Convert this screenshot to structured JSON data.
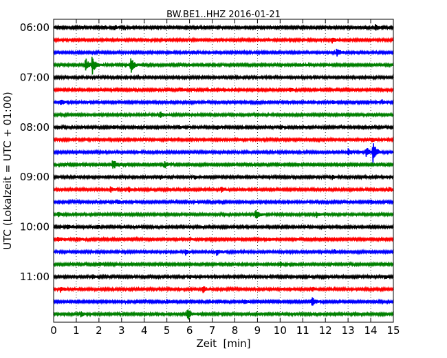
{
  "chart_data": {
    "type": "line",
    "title": "BW.BE1..HHZ 2016-01-21",
    "xlabel": "Zeit  [min]",
    "ylabel": "UTC (Lokalzeit = UTC + 01:00)",
    "xlim": [
      0,
      15
    ],
    "x_ticks": [
      "0",
      "1",
      "2",
      "3",
      "4",
      "5",
      "6",
      "7",
      "8",
      "9",
      "10",
      "11",
      "12",
      "13",
      "14",
      "15"
    ],
    "y_ticks": [
      "06:00",
      "07:00",
      "08:00",
      "09:00",
      "10:00",
      "11:00"
    ],
    "grid": "vertical dotted",
    "trace_minutes": 15,
    "colors": [
      "#000000",
      "#ff0000",
      "#0000ff",
      "#008000"
    ],
    "series": [
      {
        "start": "06:00",
        "color": "#000000",
        "events": [
          {
            "t": 2.7,
            "a": 0.3
          },
          {
            "t": 14.2,
            "a": 0.6
          }
        ]
      },
      {
        "start": "06:15",
        "color": "#ff0000",
        "events": [
          {
            "t": 12.3,
            "a": 0.4
          }
        ]
      },
      {
        "start": "06:30",
        "color": "#0000ff",
        "events": [
          {
            "t": 6.1,
            "a": 0.3
          },
          {
            "t": 12.5,
            "a": 0.7
          }
        ]
      },
      {
        "start": "06:45",
        "color": "#008000",
        "events": [
          {
            "t": 1.4,
            "a": 1.2
          },
          {
            "t": 1.7,
            "a": 1.6
          },
          {
            "t": 3.4,
            "a": 1.4
          },
          {
            "t": 10.8,
            "a": 0.3
          }
        ]
      },
      {
        "start": "07:00",
        "color": "#000000",
        "events": []
      },
      {
        "start": "07:15",
        "color": "#ff0000",
        "events": [
          {
            "t": 5.6,
            "a": 0.3
          },
          {
            "t": 10.4,
            "a": 0.3
          }
        ]
      },
      {
        "start": "07:30",
        "color": "#0000ff",
        "events": [
          {
            "t": 0.3,
            "a": 0.5
          },
          {
            "t": 12.3,
            "a": 0.3
          },
          {
            "t": 14.5,
            "a": 0.3
          }
        ]
      },
      {
        "start": "07:45",
        "color": "#008000",
        "events": [
          {
            "t": 4.7,
            "a": 0.5
          }
        ]
      },
      {
        "start": "08:00",
        "color": "#000000",
        "events": [
          {
            "t": 2.6,
            "a": 0.3
          },
          {
            "t": 5.5,
            "a": 0.3
          },
          {
            "t": 7.2,
            "a": 0.4
          },
          {
            "t": 10.0,
            "a": 0.3
          }
        ]
      },
      {
        "start": "08:15",
        "color": "#ff0000",
        "events": [
          {
            "t": 14.0,
            "a": 0.4
          }
        ]
      },
      {
        "start": "08:30",
        "color": "#0000ff",
        "events": [
          {
            "t": 13.0,
            "a": 0.6
          },
          {
            "t": 13.8,
            "a": 0.8
          },
          {
            "t": 14.1,
            "a": 1.8
          }
        ]
      },
      {
        "start": "08:45",
        "color": "#008000",
        "events": [
          {
            "t": 2.6,
            "a": 1.1
          },
          {
            "t": 4.9,
            "a": 0.5
          }
        ]
      },
      {
        "start": "09:00",
        "color": "#000000",
        "events": [
          {
            "t": 4.7,
            "a": 0.4
          },
          {
            "t": 6.2,
            "a": 0.3
          },
          {
            "t": 12.3,
            "a": 0.3
          }
        ]
      },
      {
        "start": "09:15",
        "color": "#ff0000",
        "events": [
          {
            "t": 2.5,
            "a": 0.4
          },
          {
            "t": 3.3,
            "a": 0.4
          },
          {
            "t": 7.4,
            "a": 0.4
          },
          {
            "t": 14.8,
            "a": 0.4
          }
        ]
      },
      {
        "start": "09:30",
        "color": "#0000ff",
        "events": [
          {
            "t": 2.8,
            "a": 0.4
          },
          {
            "t": 14.0,
            "a": 0.3
          }
        ]
      },
      {
        "start": "09:45",
        "color": "#008000",
        "events": [
          {
            "t": 0.2,
            "a": 0.4
          },
          {
            "t": 8.9,
            "a": 1.0
          },
          {
            "t": 11.6,
            "a": 0.5
          }
        ]
      },
      {
        "start": "10:00",
        "color": "#000000",
        "events": [
          {
            "t": 0.6,
            "a": 0.4
          },
          {
            "t": 1.9,
            "a": 0.3
          }
        ]
      },
      {
        "start": "10:15",
        "color": "#ff0000",
        "events": [
          {
            "t": 0.2,
            "a": 0.4
          },
          {
            "t": 1.0,
            "a": 0.5
          },
          {
            "t": 9.5,
            "a": 0.3
          }
        ]
      },
      {
        "start": "10:30",
        "color": "#0000ff",
        "events": [
          {
            "t": 5.8,
            "a": 0.5
          },
          {
            "t": 7.2,
            "a": 0.5
          },
          {
            "t": 12.4,
            "a": 0.3
          }
        ]
      },
      {
        "start": "10:45",
        "color": "#008000",
        "events": [
          {
            "t": 2.0,
            "a": 0.3
          },
          {
            "t": 10.0,
            "a": 0.4
          }
        ]
      },
      {
        "start": "11:00",
        "color": "#000000",
        "events": [
          {
            "t": 1.7,
            "a": 0.3
          },
          {
            "t": 6.0,
            "a": 0.3
          },
          {
            "t": 14.6,
            "a": 0.3
          }
        ]
      },
      {
        "start": "11:15",
        "color": "#ff0000",
        "events": [
          {
            "t": 0.3,
            "a": 0.5
          },
          {
            "t": 6.6,
            "a": 0.5
          },
          {
            "t": 11.4,
            "a": 0.4
          }
        ]
      },
      {
        "start": "11:30",
        "color": "#0000ff",
        "events": [
          {
            "t": 5.0,
            "a": 0.3
          },
          {
            "t": 8.4,
            "a": 0.3
          },
          {
            "t": 11.4,
            "a": 0.8
          }
        ]
      },
      {
        "start": "11:45",
        "color": "#008000",
        "events": [
          {
            "t": 1.2,
            "a": 0.4
          },
          {
            "t": 5.9,
            "a": 1.2
          }
        ]
      }
    ]
  }
}
